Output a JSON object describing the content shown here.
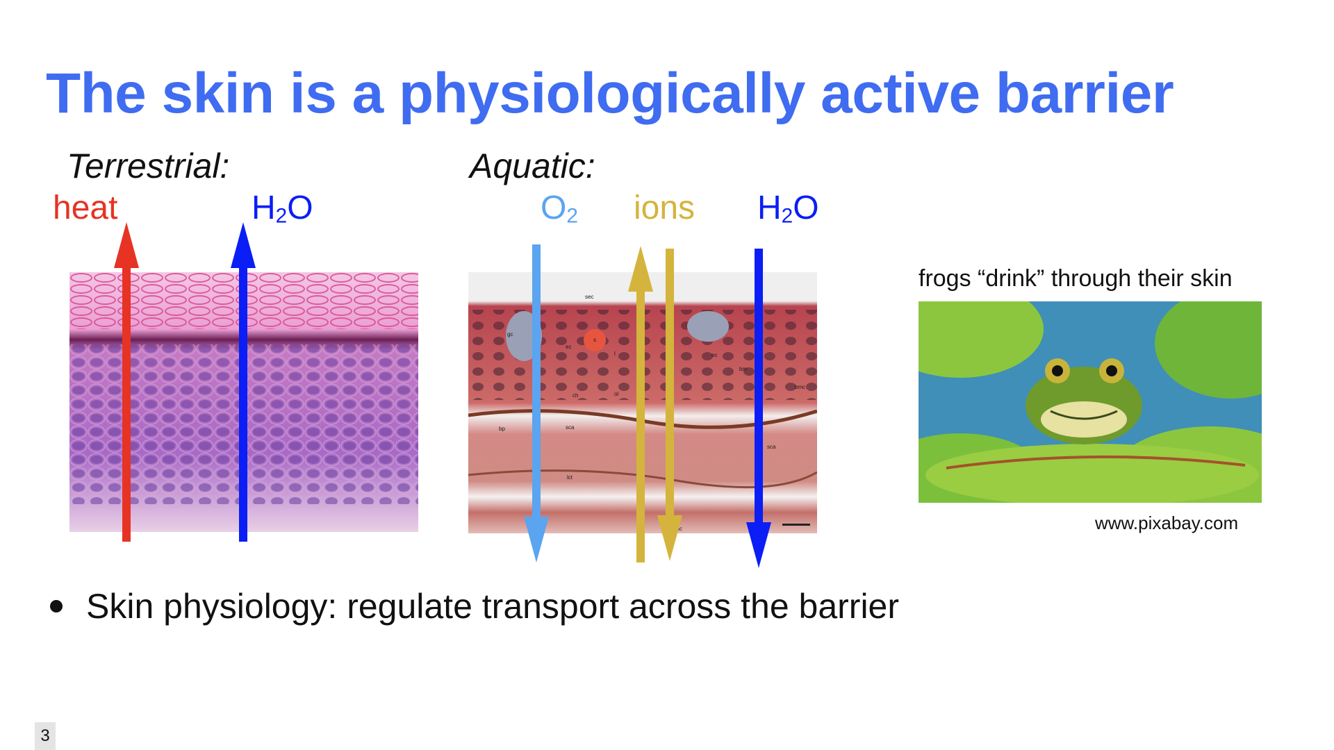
{
  "slide": {
    "title": "The skin is a physiologically active barrier",
    "page_number": "3"
  },
  "terrestrial": {
    "label": "Terrestrial:",
    "heat_label": "heat",
    "water_label_base": "H",
    "water_label_sub": "2",
    "water_label_end": "O",
    "colors": {
      "heat": "#e63323",
      "water": "#0a1ef5"
    }
  },
  "aquatic": {
    "label": "Aquatic:",
    "oxygen_label_base": "O",
    "oxygen_label_sub": "2",
    "ions_label": "ions",
    "water_label_base": "H",
    "water_label_sub": "2",
    "water_label_end": "O",
    "micro_labels": [
      "sec",
      "gc",
      "s",
      "ec",
      "l",
      "ec",
      "bm",
      "bmc",
      "ch",
      "ol",
      "ci",
      "sca",
      "bp",
      "sca",
      "lct",
      "sc"
    ],
    "colors": {
      "oxygen": "#5ba4f0",
      "ions": "#d4b43c",
      "water": "#0a1ef5"
    }
  },
  "frog": {
    "caption": "frogs “drink” through their skin",
    "credit": "www.pixabay.com"
  },
  "bullets": [
    "Skin physiology: regulate transport across the barrier"
  ]
}
